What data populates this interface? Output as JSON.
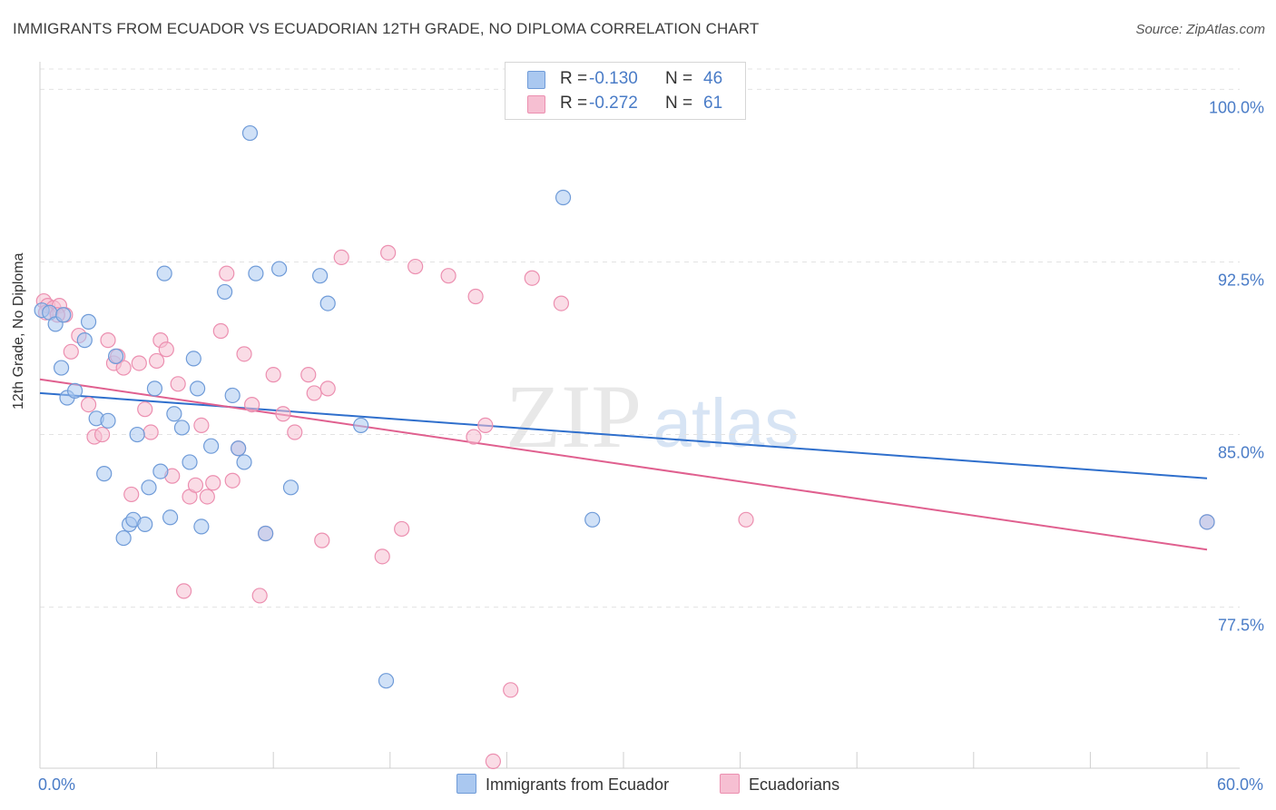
{
  "header": {
    "title": "IMMIGRANTS FROM ECUADOR VS ECUADORIAN 12TH GRADE, NO DIPLOMA CORRELATION CHART",
    "source": "Source: ZipAtlas.com"
  },
  "watermark": {
    "zip": "ZIP",
    "atlas": "atlas"
  },
  "legend": {
    "rows": [
      {
        "r_label": "R =",
        "r_value": "-0.130",
        "n_label": "N =",
        "n_value": "46"
      },
      {
        "r_label": "R =",
        "r_value": "-0.272",
        "n_label": "N =",
        "n_value": "61"
      }
    ]
  },
  "chart_data": {
    "type": "scatter",
    "title": "IMMIGRANTS FROM ECUADOR VS ECUADORIAN 12TH GRADE, NO DIPLOMA CORRELATION CHART",
    "xlabel": "",
    "ylabel": "12th Grade, No Diploma",
    "xlim": [
      0,
      60
    ],
    "ylim": [
      70.5,
      101.2
    ],
    "x_tick_labels": [
      {
        "value": 0,
        "label": "0.0%"
      },
      {
        "value": 60,
        "label": "60.0%"
      }
    ],
    "y_tick_labels": [
      {
        "value": 100,
        "label": "100.0%"
      },
      {
        "value": 92.5,
        "label": "92.5%"
      },
      {
        "value": 85,
        "label": "85.0%"
      },
      {
        "value": 77.5,
        "label": "77.5%"
      }
    ],
    "grid": "horizontal dashed",
    "legend_position": "top-center",
    "colors": {
      "blue_fill": "#aac8f0",
      "blue_stroke": "#6f9bd8",
      "blue_line": "#2f6fcc",
      "pink_fill": "#f6bfd2",
      "pink_stroke": "#ec8fb0",
      "pink_line": "#e0608f",
      "tick_text": "#4a7cc7"
    },
    "series": [
      {
        "name": "Immigrants from Ecuador",
        "color": "#aac8f0",
        "trend": {
          "x": [
            0,
            60
          ],
          "y": [
            86.8,
            83.1
          ]
        },
        "points": [
          [
            0.1,
            90.4
          ],
          [
            0.5,
            90.3
          ],
          [
            0.8,
            89.8
          ],
          [
            1.1,
            87.9
          ],
          [
            1.4,
            86.6
          ],
          [
            1.8,
            86.9
          ],
          [
            2.3,
            89.1
          ],
          [
            2.5,
            89.9
          ],
          [
            2.9,
            85.7
          ],
          [
            3.3,
            83.3
          ],
          [
            3.5,
            85.6
          ],
          [
            3.9,
            88.4
          ],
          [
            4.3,
            80.5
          ],
          [
            4.6,
            81.1
          ],
          [
            4.8,
            81.3
          ],
          [
            5.0,
            85.0
          ],
          [
            5.4,
            81.1
          ],
          [
            5.6,
            82.7
          ],
          [
            5.9,
            87.0
          ],
          [
            6.2,
            83.4
          ],
          [
            6.4,
            92.0
          ],
          [
            6.7,
            81.4
          ],
          [
            6.9,
            85.9
          ],
          [
            7.3,
            85.3
          ],
          [
            7.7,
            83.8
          ],
          [
            7.9,
            88.3
          ],
          [
            8.1,
            87.0
          ],
          [
            8.3,
            81.0
          ],
          [
            8.8,
            84.5
          ],
          [
            9.5,
            91.2
          ],
          [
            9.9,
            86.7
          ],
          [
            10.2,
            84.4
          ],
          [
            10.5,
            83.8
          ],
          [
            10.8,
            98.1
          ],
          [
            11.1,
            92.0
          ],
          [
            11.6,
            80.7
          ],
          [
            12.3,
            92.2
          ],
          [
            12.9,
            82.7
          ],
          [
            14.4,
            91.9
          ],
          [
            14.8,
            90.7
          ],
          [
            16.5,
            85.4
          ],
          [
            17.8,
            74.3
          ],
          [
            26.9,
            95.3
          ],
          [
            28.4,
            81.3
          ],
          [
            60.0,
            81.2
          ],
          [
            1.2,
            90.2
          ]
        ]
      },
      {
        "name": "Ecuadorians",
        "color": "#f6bfd2",
        "trend": {
          "x": [
            0,
            60
          ],
          "y": [
            87.4,
            80.0
          ]
        },
        "points": [
          [
            0.2,
            90.8
          ],
          [
            0.4,
            90.6
          ],
          [
            0.7,
            90.5
          ],
          [
            1.0,
            90.6
          ],
          [
            1.3,
            90.2
          ],
          [
            1.6,
            88.6
          ],
          [
            2.0,
            89.3
          ],
          [
            2.5,
            86.3
          ],
          [
            2.8,
            84.9
          ],
          [
            3.2,
            85.0
          ],
          [
            3.5,
            89.1
          ],
          [
            3.8,
            88.1
          ],
          [
            4.0,
            88.4
          ],
          [
            4.3,
            87.9
          ],
          [
            4.7,
            82.4
          ],
          [
            5.1,
            88.1
          ],
          [
            5.4,
            86.1
          ],
          [
            5.7,
            85.1
          ],
          [
            6.0,
            88.2
          ],
          [
            6.2,
            89.1
          ],
          [
            6.5,
            88.7
          ],
          [
            6.8,
            83.2
          ],
          [
            7.1,
            87.2
          ],
          [
            7.4,
            78.2
          ],
          [
            7.7,
            82.3
          ],
          [
            8.0,
            82.8
          ],
          [
            8.3,
            85.4
          ],
          [
            8.6,
            82.3
          ],
          [
            8.9,
            82.9
          ],
          [
            9.3,
            89.5
          ],
          [
            9.6,
            92.0
          ],
          [
            9.9,
            83.0
          ],
          [
            10.2,
            84.4
          ],
          [
            10.5,
            88.5
          ],
          [
            10.9,
            86.3
          ],
          [
            11.3,
            78.0
          ],
          [
            11.6,
            80.7
          ],
          [
            12.0,
            87.6
          ],
          [
            12.5,
            85.9
          ],
          [
            13.1,
            85.1
          ],
          [
            13.8,
            87.6
          ],
          [
            14.1,
            86.8
          ],
          [
            14.5,
            80.4
          ],
          [
            14.8,
            87.0
          ],
          [
            15.5,
            92.7
          ],
          [
            17.6,
            79.7
          ],
          [
            17.9,
            92.9
          ],
          [
            18.6,
            80.9
          ],
          [
            19.3,
            92.3
          ],
          [
            21.0,
            91.9
          ],
          [
            22.3,
            84.9
          ],
          [
            22.4,
            91.0
          ],
          [
            22.9,
            85.4
          ],
          [
            23.3,
            70.8
          ],
          [
            24.2,
            73.9
          ],
          [
            25.3,
            91.8
          ],
          [
            26.8,
            90.7
          ],
          [
            36.3,
            81.3
          ],
          [
            60.0,
            81.2
          ],
          [
            0.3,
            90.3
          ],
          [
            0.9,
            90.2
          ]
        ]
      }
    ]
  },
  "bottom_legend": {
    "items": [
      {
        "label": "Immigrants from Ecuador"
      },
      {
        "label": "Ecuadorians"
      }
    ]
  }
}
